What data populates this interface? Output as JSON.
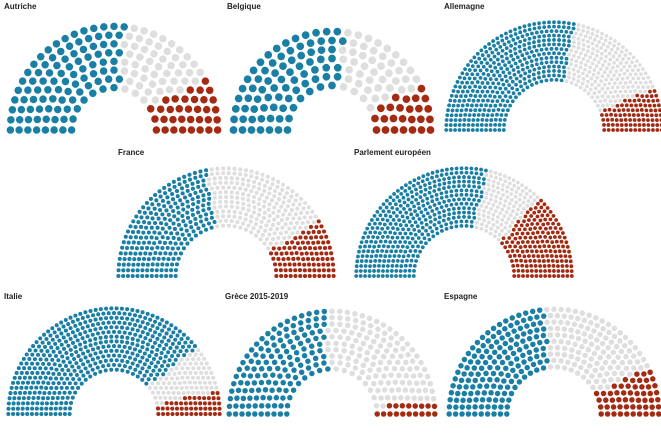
{
  "colors": {
    "group_a": "#1a7fa5",
    "group_b": "#dedede",
    "group_c": "#a52a12"
  },
  "chart_data": [
    {
      "type": "parliament",
      "title": "Autriche",
      "total_seats": 183,
      "seats": [
        {
          "color": "#1a7fa5",
          "count": 98
        },
        {
          "color": "#dedede",
          "count": 51
        },
        {
          "color": "#a52a12",
          "count": 34
        }
      ]
    },
    {
      "type": "parliament",
      "title": "Belgique",
      "total_seats": 150,
      "seats": [
        {
          "color": "#1a7fa5",
          "count": 81
        },
        {
          "color": "#dedede",
          "count": 44
        },
        {
          "color": "#a52a12",
          "count": 25
        }
      ]
    },
    {
      "type": "parliament",
      "title": "Allemagne",
      "total_seats": 709,
      "seats": [
        {
          "color": "#1a7fa5",
          "count": 399
        },
        {
          "color": "#dedede",
          "count": 216
        },
        {
          "color": "#a52a12",
          "count": 94
        }
      ]
    },
    {
      "type": "parliament",
      "title": "France",
      "total_seats": 577,
      "seats": [
        {
          "color": "#1a7fa5",
          "count": 255
        },
        {
          "color": "#dedede",
          "count": 220
        },
        {
          "color": "#a52a12",
          "count": 102
        }
      ]
    },
    {
      "type": "parliament",
      "title": "Parlement européen",
      "total_seats": 705,
      "seats": [
        {
          "color": "#1a7fa5",
          "count": 400
        },
        {
          "color": "#dedede",
          "count": 124
        },
        {
          "color": "#a52a12",
          "count": 181
        }
      ]
    },
    {
      "type": "parliament",
      "title": "Italie",
      "total_seats": 630,
      "seats": [
        {
          "color": "#1a7fa5",
          "count": 490
        },
        {
          "color": "#dedede",
          "count": 90
        },
        {
          "color": "#a52a12",
          "count": 50
        }
      ]
    },
    {
      "type": "parliament",
      "title": "Grèce 2015-2019",
      "total_seats": 300,
      "seats": [
        {
          "color": "#1a7fa5",
          "count": 144
        },
        {
          "color": "#dedede",
          "count": 138
        },
        {
          "color": "#a52a12",
          "count": 18
        }
      ]
    },
    {
      "type": "parliament",
      "title": "Espagne",
      "total_seats": 350,
      "seats": [
        {
          "color": "#1a7fa5",
          "count": 165
        },
        {
          "color": "#dedede",
          "count": 130
        },
        {
          "color": "#a52a12",
          "count": 55
        }
      ]
    }
  ]
}
